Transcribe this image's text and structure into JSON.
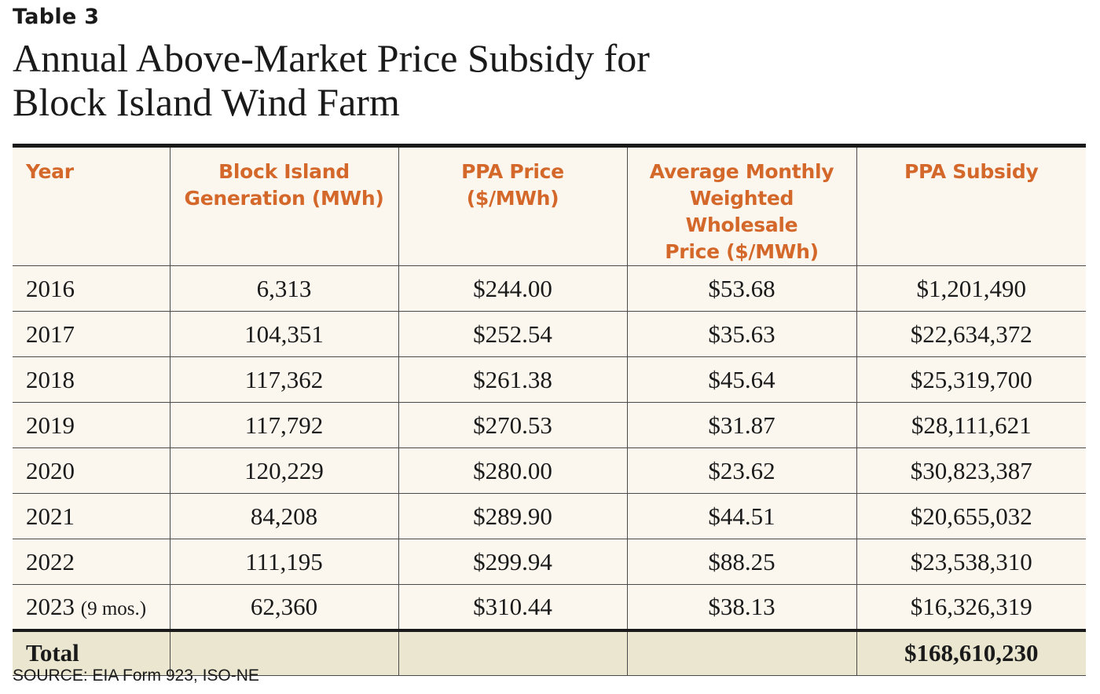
{
  "table_label": "Table 3",
  "title_line1": "Annual Above-Market Price Subsidy for",
  "title_line2": "Block Island Wind Farm",
  "headers": {
    "year": "Year",
    "generation_line1": "Block Island",
    "generation_line2": "Generation (MWh)",
    "ppa_price_line1": "PPA Price",
    "ppa_price_line2": "($/MWh)",
    "wholesale_line1": "Average Monthly",
    "wholesale_line2": "Weighted Wholesale",
    "wholesale_line3": "Price ($/MWh)",
    "subsidy": "PPA Subsidy"
  },
  "rows": [
    {
      "year": "2016",
      "note": "",
      "generation": "6,313",
      "ppa_price": "$244.00",
      "wholesale": "$53.68",
      "subsidy": "$1,201,490"
    },
    {
      "year": "2017",
      "note": "",
      "generation": "104,351",
      "ppa_price": "$252.54",
      "wholesale": "$35.63",
      "subsidy": "$22,634,372"
    },
    {
      "year": "2018",
      "note": "",
      "generation": "117,362",
      "ppa_price": "$261.38",
      "wholesale": "$45.64",
      "subsidy": "$25,319,700"
    },
    {
      "year": "2019",
      "note": "",
      "generation": "117,792",
      "ppa_price": "$270.53",
      "wholesale": "$31.87",
      "subsidy": "$28,111,621"
    },
    {
      "year": "2020",
      "note": "",
      "generation": "120,229",
      "ppa_price": "$280.00",
      "wholesale": "$23.62",
      "subsidy": "$30,823,387"
    },
    {
      "year": "2021",
      "note": "",
      "generation": "84,208",
      "ppa_price": "$289.90",
      "wholesale": "$44.51",
      "subsidy": "$20,655,032"
    },
    {
      "year": "2022",
      "note": "",
      "generation": "111,195",
      "ppa_price": "$299.94",
      "wholesale": "$88.25",
      "subsidy": "$23,538,310"
    },
    {
      "year": "2023",
      "note": "(9 mos.)",
      "generation": "62,360",
      "ppa_price": "$310.44",
      "wholesale": "$38.13",
      "subsidy": "$16,326,319"
    }
  ],
  "total": {
    "label": "Total",
    "subsidy": "$168,610,230"
  },
  "source": "SOURCE: EIA Form 923, ISO-NE",
  "colors": {
    "header_text": "#d4682a",
    "cell_background": "#fbf7ee",
    "total_background": "#eae6d0",
    "text": "#1a1a1a"
  }
}
